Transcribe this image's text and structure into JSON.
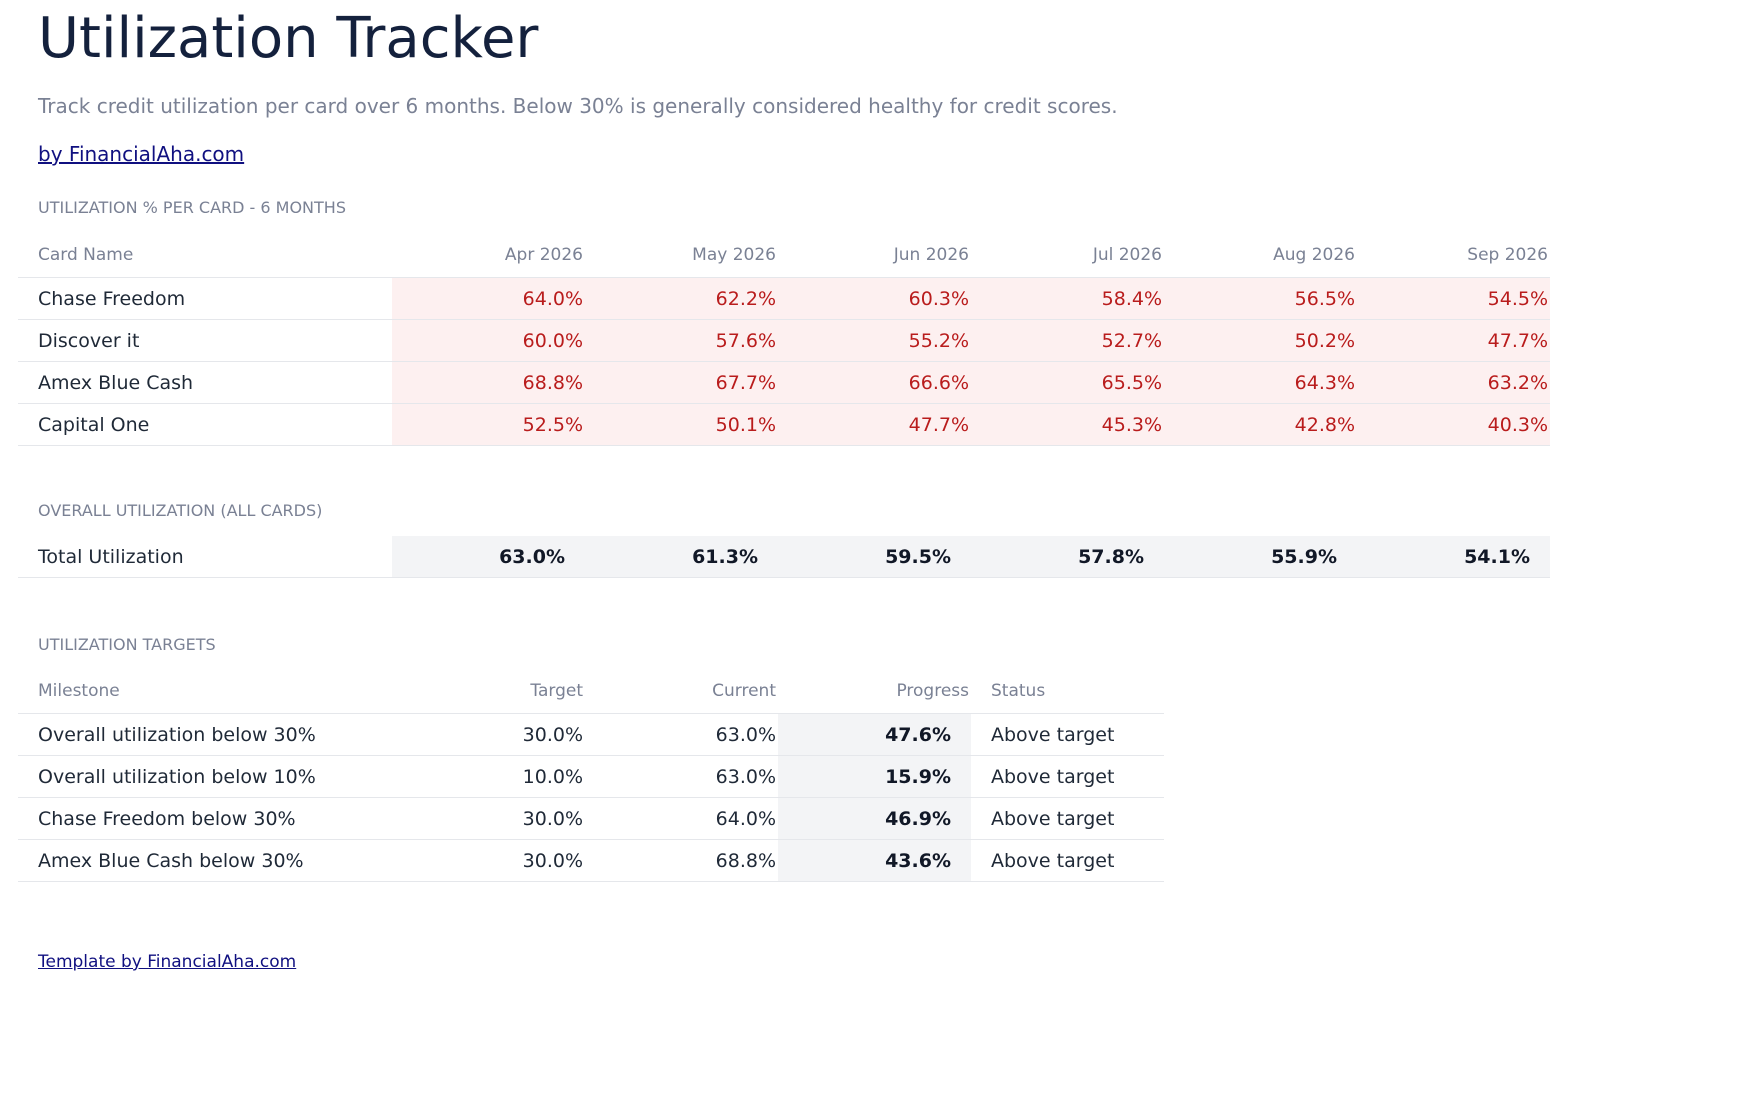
{
  "header": {
    "title": "Utilization Tracker",
    "subtitle": "Track credit utilization per card over 6 months. Below 30% is generally considered healthy for credit scores.",
    "byline": "by FinancialAha.com"
  },
  "per_card": {
    "heading": "UTILIZATION % PER CARD - 6 MONTHS",
    "columns": [
      "Card Name",
      "Apr 2026",
      "May 2026",
      "Jun 2026",
      "Jul 2026",
      "Aug 2026",
      "Sep 2026"
    ],
    "rows": [
      [
        "Chase Freedom",
        "64.0%",
        "62.2%",
        "60.3%",
        "58.4%",
        "56.5%",
        "54.5%"
      ],
      [
        "Discover it",
        "60.0%",
        "57.6%",
        "55.2%",
        "52.7%",
        "50.2%",
        "47.7%"
      ],
      [
        "Amex Blue Cash",
        "68.8%",
        "67.7%",
        "66.6%",
        "65.5%",
        "64.3%",
        "63.2%"
      ],
      [
        "Capital One",
        "52.5%",
        "50.1%",
        "47.7%",
        "45.3%",
        "42.8%",
        "40.3%"
      ]
    ]
  },
  "overall": {
    "heading": "OVERALL UTILIZATION (ALL CARDS)",
    "row": [
      "Total Utilization",
      "63.0%",
      "61.3%",
      "59.5%",
      "57.8%",
      "55.9%",
      "54.1%"
    ]
  },
  "targets": {
    "heading": "UTILIZATION TARGETS",
    "columns": [
      "Milestone",
      "Target",
      "Current",
      "Progress",
      "Status"
    ],
    "rows": [
      [
        "Overall utilization below 30%",
        "30.0%",
        "63.0%",
        "47.6%",
        "Above target"
      ],
      [
        "Overall utilization below 10%",
        "10.0%",
        "63.0%",
        "15.9%",
        "Above target"
      ],
      [
        "Chase Freedom below 30%",
        "30.0%",
        "64.0%",
        "46.9%",
        "Above target"
      ],
      [
        "Amex Blue Cash below 30%",
        "30.0%",
        "68.8%",
        "43.6%",
        "Above target"
      ]
    ]
  },
  "footer": {
    "link": "Template by FinancialAha.com"
  }
}
